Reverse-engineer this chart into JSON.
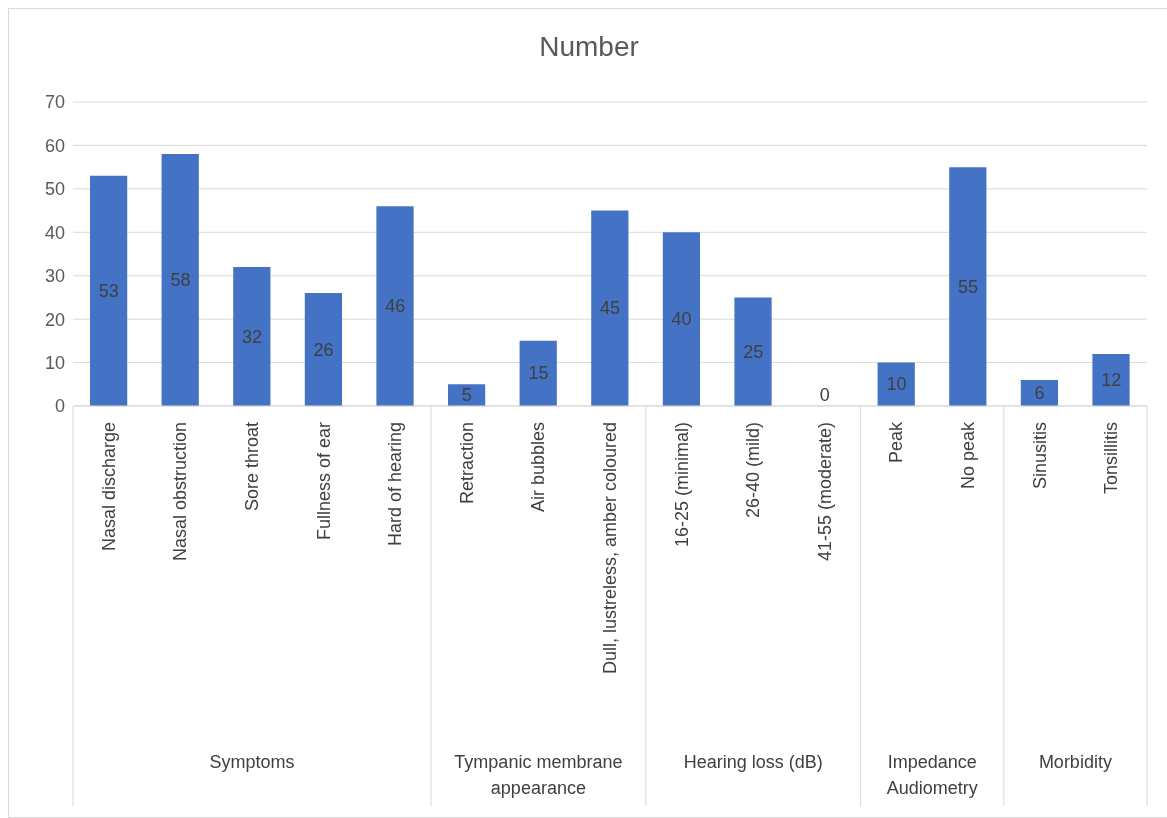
{
  "chart_data": {
    "type": "bar",
    "title": "Number",
    "categories": [
      "Nasal discharge",
      "Nasal obstruction",
      "Sore throat",
      "Fullness of ear",
      "Hard of hearing",
      "Retraction",
      "Air bubbles",
      "Dull, lustreless, amber coloured",
      "16-25 (minimal)",
      "26-40 (mild)",
      "41-55 (moderate)",
      "Peak",
      "No peak",
      "Sinusitis",
      "Tonsillitis"
    ],
    "values": [
      53,
      58,
      32,
      26,
      46,
      5,
      15,
      45,
      40,
      25,
      0,
      10,
      55,
      6,
      12
    ],
    "color": "#4472c4",
    "ylim": [
      0,
      70
    ],
    "yticks": [
      0,
      10,
      20,
      30,
      40,
      50,
      60,
      70
    ],
    "grid": "y",
    "data_labels": true,
    "annotations": [
      "Symptoms",
      "Tympanic membrane appearance",
      "Hearing loss (dB)",
      "Impedance Audiometry",
      "Morbidity"
    ]
  }
}
